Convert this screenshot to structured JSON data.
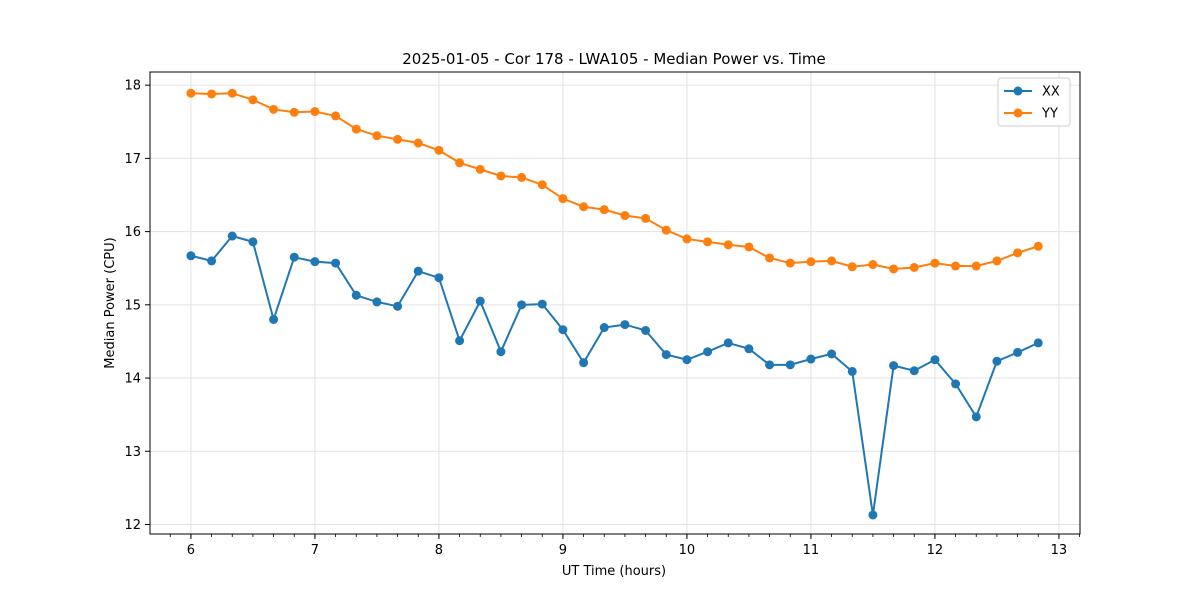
{
  "chart_data": {
    "type": "line",
    "title": "2025-01-05 - Cor 178 - LWA105 - Median Power vs. Time",
    "xlabel": "UT Time (hours)",
    "ylabel": "Median Power (CPU)",
    "xlim": [
      5.67,
      13.17
    ],
    "ylim": [
      11.87,
      18.18
    ],
    "xticks": [
      6,
      7,
      8,
      9,
      10,
      11,
      12,
      13
    ],
    "yticks": [
      12,
      13,
      14,
      15,
      16,
      17,
      18
    ],
    "grid": true,
    "legend_position": "top-right",
    "x": [
      6.0,
      6.1667,
      6.3333,
      6.5,
      6.6667,
      6.8333,
      7.0,
      7.1667,
      7.3333,
      7.5,
      7.6667,
      7.8333,
      8.0,
      8.1667,
      8.3333,
      8.5,
      8.6667,
      8.8333,
      9.0,
      9.1667,
      9.3333,
      9.5,
      9.6667,
      9.8333,
      10.0,
      10.1667,
      10.3333,
      10.5,
      10.6667,
      10.8333,
      11.0,
      11.1667,
      11.3333,
      11.5,
      11.6667,
      11.8333,
      12.0,
      12.1667,
      12.3333,
      12.5,
      12.6667,
      12.8333
    ],
    "series": [
      {
        "name": "XX",
        "color": "#1f77b4",
        "values": [
          15.67,
          15.6,
          15.94,
          15.86,
          14.8,
          15.65,
          15.59,
          15.57,
          15.13,
          15.04,
          14.98,
          15.46,
          15.37,
          14.51,
          15.05,
          14.36,
          15.0,
          15.01,
          14.66,
          14.21,
          14.69,
          14.73,
          14.65,
          14.32,
          14.25,
          14.36,
          14.48,
          14.4,
          14.18,
          14.18,
          14.26,
          14.33,
          14.09,
          12.13,
          14.17,
          14.1,
          14.25,
          13.92,
          13.47,
          14.23,
          14.35,
          14.48
        ]
      },
      {
        "name": "YY",
        "color": "#ff7f0e",
        "values": [
          17.89,
          17.88,
          17.89,
          17.8,
          17.67,
          17.63,
          17.64,
          17.58,
          17.4,
          17.31,
          17.26,
          17.21,
          17.11,
          16.94,
          16.85,
          16.76,
          16.74,
          16.64,
          16.45,
          16.34,
          16.3,
          16.22,
          16.18,
          16.02,
          15.9,
          15.86,
          15.82,
          15.79,
          15.64,
          15.57,
          15.59,
          15.6,
          15.52,
          15.55,
          15.49,
          15.51,
          15.57,
          15.53,
          15.53,
          15.6,
          15.71,
          15.8
        ]
      }
    ]
  }
}
